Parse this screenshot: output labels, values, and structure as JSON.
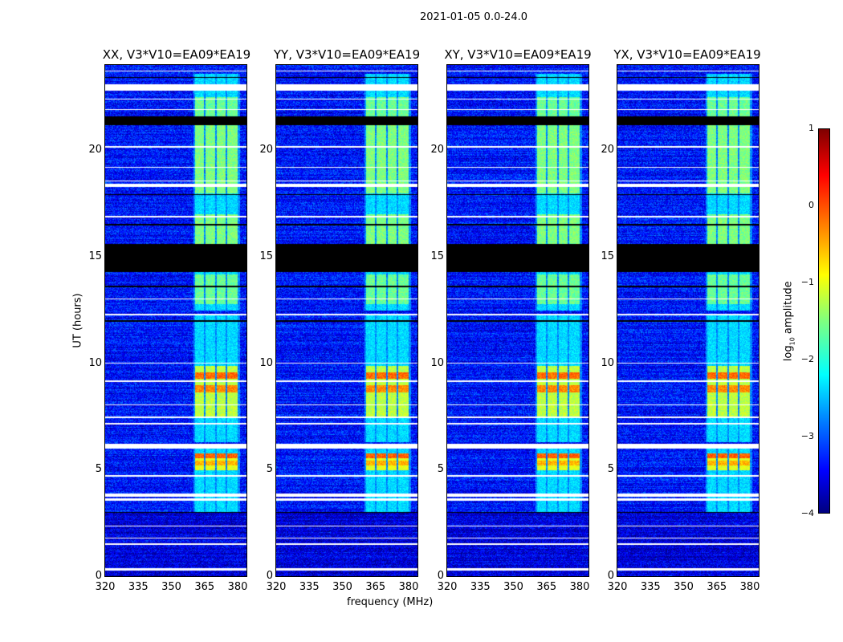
{
  "chart_data": {
    "type": "heatmap",
    "title": "2021-01-05 0.0-24.0",
    "xlabel": "frequency (MHz)",
    "ylabel": "UT (hours)",
    "xlim": [
      320,
      384
    ],
    "ylim": [
      0,
      24
    ],
    "xticks": [
      320,
      335,
      350,
      365,
      380
    ],
    "yticks": [
      0,
      5,
      10,
      15,
      20
    ],
    "panels": [
      {
        "title": "XX, V3*V10=EA09*EA19"
      },
      {
        "title": "YY, V3*V10=EA09*EA19"
      },
      {
        "title": "XY, V3*V10=EA09*EA19"
      },
      {
        "title": "YX, V3*V10=EA09*EA19"
      }
    ],
    "colorbar": {
      "label_prefix": "log",
      "label_sub": "10",
      "label_suffix": " amplitude",
      "clim": [
        -4,
        1
      ],
      "cmap": "jet",
      "ticks": [
        1,
        0,
        -1,
        -2,
        -3,
        -4
      ],
      "tick_labels": [
        "1",
        "0",
        "−1",
        "−2",
        "−3",
        "−4"
      ]
    },
    "noise_level_log10": -3.3,
    "signal_subbands_mhz": [
      [
        360.5,
        364.5
      ],
      [
        365.2,
        369.5
      ],
      [
        370.2,
        374.5
      ],
      [
        375.2,
        379.8
      ]
    ],
    "signal_hours": [
      [
        3.0,
        6.0
      ],
      [
        6.3,
        12.3
      ],
      [
        12.5,
        14.3
      ],
      [
        15.6,
        23.6
      ]
    ],
    "bright_hours": [
      [
        5.0,
        5.8,
        -1.0
      ],
      [
        7.5,
        9.9,
        -1.2
      ],
      [
        15.6,
        17.0,
        -1.5
      ],
      [
        18.0,
        21.2,
        -1.5
      ],
      [
        21.6,
        22.5,
        -1.6
      ],
      [
        12.8,
        14.2,
        -1.6
      ]
    ],
    "strong_hours": [
      [
        9.3,
        9.6,
        -0.15
      ],
      [
        8.65,
        9.0,
        -0.3
      ],
      [
        5.55,
        5.8,
        -0.1
      ],
      [
        5.2,
        5.45,
        -0.5
      ]
    ],
    "blank_hours": [
      [
        14.3,
        15.6
      ],
      [
        21.2,
        21.6
      ],
      [
        11.95,
        12.05
      ],
      [
        13.6,
        13.65
      ],
      [
        2.98,
        3.05
      ],
      [
        16.5,
        16.55
      ],
      [
        17.9,
        17.95
      ],
      [
        23.4,
        23.45
      ]
    ],
    "flagged_hours": [
      [
        6.0,
        6.25
      ],
      [
        3.55,
        3.68
      ],
      [
        3.75,
        3.9
      ],
      [
        22.8,
        23.1
      ],
      [
        18.3,
        18.45
      ],
      [
        18.55,
        18.6
      ],
      [
        16.85,
        16.95
      ],
      [
        14.9,
        15.0
      ],
      [
        12.25,
        12.35
      ],
      [
        9.15,
        9.22
      ],
      [
        8.05,
        8.1
      ],
      [
        7.45,
        7.52
      ],
      [
        7.15,
        7.2
      ],
      [
        4.7,
        4.75
      ],
      [
        19.2,
        19.25
      ],
      [
        20.15,
        20.2
      ],
      [
        21.9,
        21.95
      ],
      [
        22.4,
        22.45
      ],
      [
        13.0,
        13.05
      ],
      [
        1.5,
        1.55
      ],
      [
        0.3,
        0.4
      ],
      [
        1.8,
        1.83
      ],
      [
        2.35,
        2.38
      ],
      [
        23.7,
        23.75
      ],
      [
        10.0,
        10.05
      ]
    ]
  }
}
